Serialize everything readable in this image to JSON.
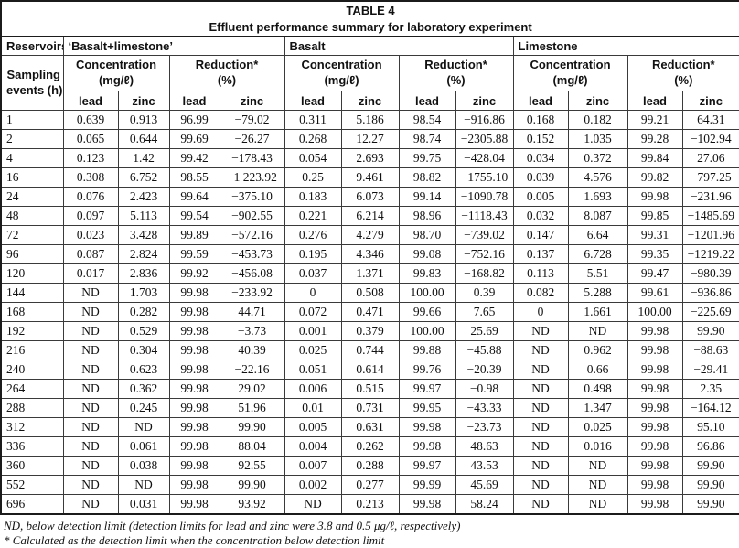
{
  "title": {
    "line1": "TABLE 4",
    "line2": "Effluent performance summary for laboratory experiment"
  },
  "header": {
    "reservoirs": "Reservoirs",
    "groups": [
      "‘Basalt+limestone’",
      "Basalt",
      "Limestone"
    ],
    "sampling_line1": "Sampling",
    "sampling_line2": "events (h)",
    "concentration_line1": "Concentration",
    "concentration_line2": "(mg/ℓ)",
    "reduction_line1": "Reduction*",
    "reduction_line2": "(%)",
    "lead": "lead",
    "zinc": "zinc"
  },
  "table": {
    "rows": [
      {
        "h": "1",
        "values": [
          "0.639",
          "0.913",
          "96.99",
          "−79.02",
          "0.311",
          "5.186",
          "98.54",
          "−916.86",
          "0.168",
          "0.182",
          "99.21",
          "64.31"
        ]
      },
      {
        "h": "2",
        "values": [
          "0.065",
          "0.644",
          "99.69",
          "−26.27",
          "0.268",
          "12.27",
          "98.74",
          "−2305.88",
          "0.152",
          "1.035",
          "99.28",
          "−102.94"
        ]
      },
      {
        "h": "4",
        "values": [
          "0.123",
          "1.42",
          "99.42",
          "−178.43",
          "0.054",
          "2.693",
          "99.75",
          "−428.04",
          "0.034",
          "0.372",
          "99.84",
          "27.06"
        ]
      },
      {
        "h": "16",
        "values": [
          "0.308",
          "6.752",
          "98.55",
          "−1 223.92",
          "0.25",
          "9.461",
          "98.82",
          "−1755.10",
          "0.039",
          "4.576",
          "99.82",
          "−797.25"
        ]
      },
      {
        "h": "24",
        "values": [
          "0.076",
          "2.423",
          "99.64",
          "−375.10",
          "0.183",
          "6.073",
          "99.14",
          "−1090.78",
          "0.005",
          "1.693",
          "99.98",
          "−231.96"
        ]
      },
      {
        "h": "48",
        "values": [
          "0.097",
          "5.113",
          "99.54",
          "−902.55",
          "0.221",
          "6.214",
          "98.96",
          "−1118.43",
          "0.032",
          "8.087",
          "99.85",
          "−1485.69"
        ]
      },
      {
        "h": "72",
        "values": [
          "0.023",
          "3.428",
          "99.89",
          "−572.16",
          "0.276",
          "4.279",
          "98.70",
          "−739.02",
          "0.147",
          "6.64",
          "99.31",
          "−1201.96"
        ]
      },
      {
        "h": "96",
        "values": [
          "0.087",
          "2.824",
          "99.59",
          "−453.73",
          "0.195",
          "4.346",
          "99.08",
          "−752.16",
          "0.137",
          "6.728",
          "99.35",
          "−1219.22"
        ]
      },
      {
        "h": "120",
        "values": [
          "0.017",
          "2.836",
          "99.92",
          "−456.08",
          "0.037",
          "1.371",
          "99.83",
          "−168.82",
          "0.113",
          "5.51",
          "99.47",
          "−980.39"
        ]
      },
      {
        "h": "144",
        "values": [
          "ND",
          "1.703",
          "99.98",
          "−233.92",
          "0",
          "0.508",
          "100.00",
          "0.39",
          "0.082",
          "5.288",
          "99.61",
          "−936.86"
        ]
      },
      {
        "h": "168",
        "values": [
          "ND",
          "0.282",
          "99.98",
          "44.71",
          "0.072",
          "0.471",
          "99.66",
          "7.65",
          "0",
          "1.661",
          "100.00",
          "−225.69"
        ]
      },
      {
        "h": "192",
        "values": [
          "ND",
          "0.529",
          "99.98",
          "−3.73",
          "0.001",
          "0.379",
          "100.00",
          "25.69",
          "ND",
          "ND",
          "99.98",
          "99.90"
        ]
      },
      {
        "h": "216",
        "values": [
          "ND",
          "0.304",
          "99.98",
          "40.39",
          "0.025",
          "0.744",
          "99.88",
          "−45.88",
          "ND",
          "0.962",
          "99.98",
          "−88.63"
        ]
      },
      {
        "h": "240",
        "values": [
          "ND",
          "0.623",
          "99.98",
          "−22.16",
          "0.051",
          "0.614",
          "99.76",
          "−20.39",
          "ND",
          "0.66",
          "99.98",
          "−29.41"
        ]
      },
      {
        "h": "264",
        "values": [
          "ND",
          "0.362",
          "99.98",
          "29.02",
          "0.006",
          "0.515",
          "99.97",
          "−0.98",
          "ND",
          "0.498",
          "99.98",
          "2.35"
        ]
      },
      {
        "h": "288",
        "values": [
          "ND",
          "0.245",
          "99.98",
          "51.96",
          "0.01",
          "0.731",
          "99.95",
          "−43.33",
          "ND",
          "1.347",
          "99.98",
          "−164.12"
        ]
      },
      {
        "h": "312",
        "values": [
          "ND",
          "ND",
          "99.98",
          "99.90",
          "0.005",
          "0.631",
          "99.98",
          "−23.73",
          "ND",
          "0.025",
          "99.98",
          "95.10"
        ]
      },
      {
        "h": "336",
        "values": [
          "ND",
          "0.061",
          "99.98",
          "88.04",
          "0.004",
          "0.262",
          "99.98",
          "48.63",
          "ND",
          "0.016",
          "99.98",
          "96.86"
        ]
      },
      {
        "h": "360",
        "values": [
          "ND",
          "0.038",
          "99.98",
          "92.55",
          "0.007",
          "0.288",
          "99.97",
          "43.53",
          "ND",
          "ND",
          "99.98",
          "99.90"
        ]
      },
      {
        "h": "552",
        "values": [
          "ND",
          "ND",
          "99.98",
          "99.90",
          "0.002",
          "0.277",
          "99.99",
          "45.69",
          "ND",
          "ND",
          "99.98",
          "99.90"
        ]
      },
      {
        "h": "696",
        "values": [
          "ND",
          "0.031",
          "99.98",
          "93.92",
          "ND",
          "0.213",
          "99.98",
          "58.24",
          "ND",
          "ND",
          "99.98",
          "99.90"
        ]
      }
    ]
  },
  "footnotes": [
    "ND, below detection limit (detection limits for lead and zinc were 3.8 and 0.5 μg/ℓ, respectively)",
    "* Calculated as the detection limit when the concentration below detection limit"
  ]
}
